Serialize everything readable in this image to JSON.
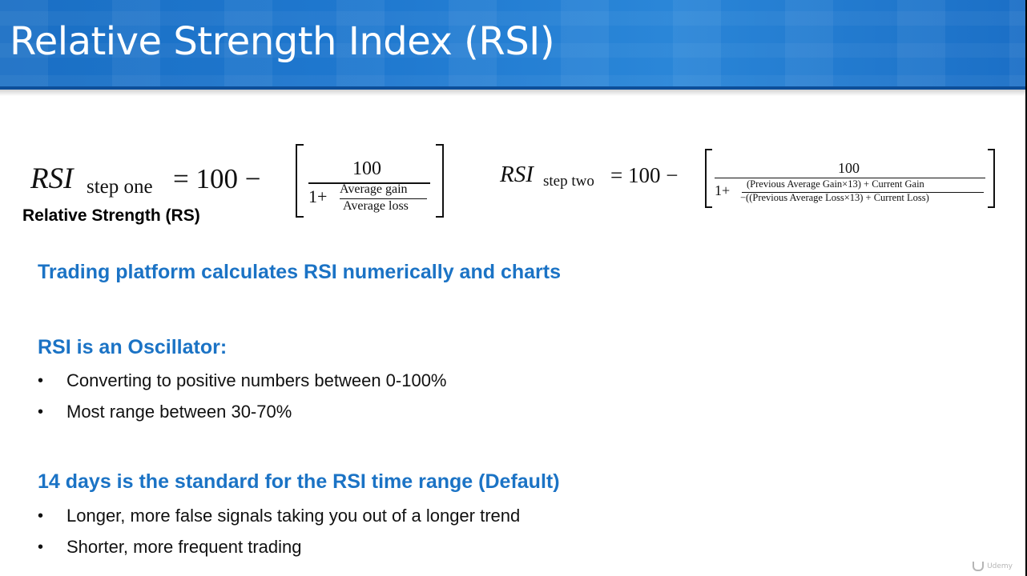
{
  "slide": {
    "title": "Relative Strength Index (RSI)"
  },
  "formula_one": {
    "lhs": "RSI",
    "subscript": "step one",
    "equals_text": "= 100 −",
    "numerator": "100",
    "one_plus": "1+",
    "inner_numerator": "Average gain",
    "inner_denominator": "Average loss"
  },
  "formula_two": {
    "lhs": "RSI",
    "subscript": "step two",
    "equals_text": "= 100 −",
    "numerator": "100",
    "one_plus": "1+",
    "inner_numerator": "(Previous Average Gain×13) + Current Gain",
    "inner_denominator": "−((Previous Average Loss×13) + Current Loss)"
  },
  "rs_label": "Relative Strength (RS)",
  "section_calc": {
    "heading": "Trading platform calculates RSI numerically and charts"
  },
  "section_oscillator": {
    "heading": "RSI is an Oscillator:",
    "bullets": [
      "Converting to positive numbers between 0-100%",
      "Most range between 30-70%"
    ]
  },
  "section_default": {
    "heading": "14 days is the standard for the RSI time range (Default)",
    "bullets": [
      "Longer, more false signals taking you out of a longer trend",
      "Shorter, more frequent trading"
    ]
  },
  "watermark": "Udemy",
  "colors": {
    "title_bar": "#1f78cf",
    "heading_blue": "#1b73c5"
  }
}
